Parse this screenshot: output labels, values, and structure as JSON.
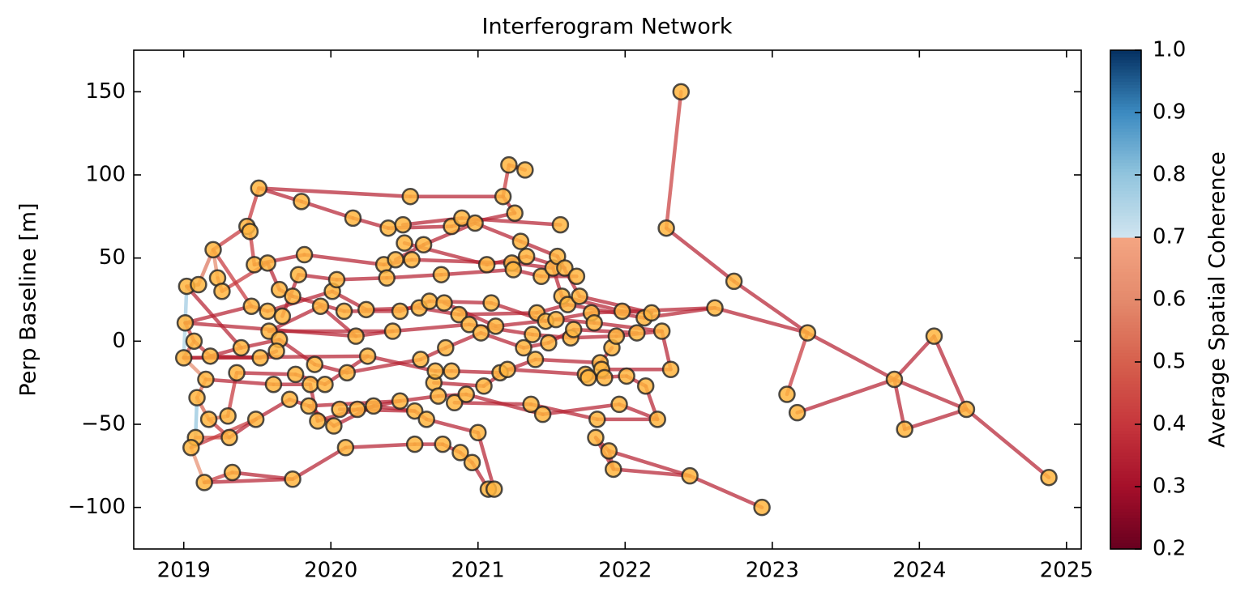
{
  "chart_data": {
    "type": "network",
    "title": "Interferogram Network",
    "y_label": "Perp Baseline [m]",
    "colorbar_label": "Average Spatial Coherence",
    "xlim": [
      2018.66,
      2025.1
    ],
    "xticks": [
      2019,
      2020,
      2021,
      2022,
      2023,
      2024,
      2025
    ],
    "ylim": [
      -125,
      175
    ],
    "yticks": [
      {
        "value": -100,
        "label": "−100"
      },
      {
        "value": -50,
        "label": "−50"
      },
      0,
      50,
      100,
      150
    ],
    "clim": [
      0.2,
      1.0
    ],
    "cticks": [
      0.2,
      0.3,
      0.4,
      0.5,
      0.6,
      0.7,
      0.8,
      0.9,
      {
        "value": 1,
        "label": "1.0"
      }
    ],
    "colormap": [
      [
        0.2,
        "#67001f"
      ],
      [
        0.3,
        "#a50f2a"
      ],
      [
        0.4,
        "#c6363c"
      ],
      [
        0.5,
        "#d6604d"
      ],
      [
        0.6,
        "#e48a6c"
      ],
      [
        0.7,
        "#f4a582"
      ],
      [
        0.7,
        "#d1e5f0"
      ],
      [
        0.8,
        "#92c5de"
      ],
      [
        0.9,
        "#3c8bc1"
      ],
      [
        1.0,
        "#053061"
      ]
    ],
    "node_color": "#ffb540",
    "nodes": [
      [
        2019.02,
        33
      ],
      [
        2019.01,
        11
      ],
      [
        2019.0,
        -10
      ],
      [
        2019.07,
        0
      ],
      [
        2019.1,
        34
      ],
      [
        2019.2,
        55
      ],
      [
        2019.23,
        38
      ],
      [
        2019.26,
        30
      ],
      [
        2019.18,
        -9
      ],
      [
        2019.15,
        -23
      ],
      [
        2019.09,
        -34
      ],
      [
        2019.17,
        -47
      ],
      [
        2019.08,
        -58
      ],
      [
        2019.05,
        -64
      ],
      [
        2019.14,
        -85
      ],
      [
        2019.3,
        -45
      ],
      [
        2019.31,
        -58
      ],
      [
        2019.33,
        -79
      ],
      [
        2019.39,
        -4
      ],
      [
        2019.36,
        -19
      ],
      [
        2019.43,
        69
      ],
      [
        2019.45,
        66
      ],
      [
        2019.51,
        92
      ],
      [
        2019.46,
        21
      ],
      [
        2019.48,
        46
      ],
      [
        2019.57,
        47
      ],
      [
        2019.49,
        -47
      ],
      [
        2019.52,
        -10
      ],
      [
        2019.61,
        -26
      ],
      [
        2019.57,
        18
      ],
      [
        2019.58,
        6
      ],
      [
        2019.65,
        31
      ],
      [
        2019.67,
        15
      ],
      [
        2019.65,
        1
      ],
      [
        2019.63,
        -6
      ],
      [
        2019.72,
        -35
      ],
      [
        2019.74,
        -83
      ],
      [
        2019.78,
        40
      ],
      [
        2019.8,
        84
      ],
      [
        2019.82,
        52
      ],
      [
        2019.74,
        27
      ],
      [
        2019.76,
        -20
      ],
      [
        2019.86,
        -26
      ],
      [
        2019.89,
        -14
      ],
      [
        2019.85,
        -39
      ],
      [
        2019.93,
        21
      ],
      [
        2019.91,
        -48
      ],
      [
        2019.96,
        -26
      ],
      [
        2020.01,
        30
      ],
      [
        2020.04,
        37
      ],
      [
        2020.02,
        -51
      ],
      [
        2020.06,
        -41
      ],
      [
        2020.1,
        -64
      ],
      [
        2020.11,
        -19
      ],
      [
        2020.09,
        18
      ],
      [
        2020.15,
        74
      ],
      [
        2020.18,
        -41
      ],
      [
        2020.17,
        3
      ],
      [
        2020.24,
        19
      ],
      [
        2020.25,
        -9
      ],
      [
        2020.29,
        -39
      ],
      [
        2020.36,
        46
      ],
      [
        2020.38,
        38
      ],
      [
        2020.39,
        68
      ],
      [
        2020.42,
        6
      ],
      [
        2020.44,
        49
      ],
      [
        2020.47,
        18
      ],
      [
        2020.47,
        -36
      ],
      [
        2020.49,
        70
      ],
      [
        2020.5,
        59
      ],
      [
        2020.54,
        87
      ],
      [
        2020.55,
        49
      ],
      [
        2020.57,
        -62
      ],
      [
        2020.57,
        -42
      ],
      [
        2020.6,
        20
      ],
      [
        2020.61,
        -11
      ],
      [
        2020.63,
        58
      ],
      [
        2020.65,
        -47
      ],
      [
        2020.67,
        24
      ],
      [
        2020.7,
        -25
      ],
      [
        2020.71,
        -18
      ],
      [
        2020.73,
        -33
      ],
      [
        2020.75,
        40
      ],
      [
        2020.76,
        -62
      ],
      [
        2020.77,
        23
      ],
      [
        2020.78,
        -4
      ],
      [
        2020.82,
        69
      ],
      [
        2020.82,
        -18
      ],
      [
        2020.84,
        -37
      ],
      [
        2020.87,
        16
      ],
      [
        2020.88,
        -67
      ],
      [
        2020.89,
        74
      ],
      [
        2020.92,
        -32
      ],
      [
        2020.94,
        10
      ],
      [
        2020.96,
        -73
      ],
      [
        2020.98,
        71
      ],
      [
        2021.0,
        -55
      ],
      [
        2021.02,
        5
      ],
      [
        2021.04,
        -27
      ],
      [
        2021.06,
        46
      ],
      [
        2021.07,
        -89
      ],
      [
        2021.11,
        -89
      ],
      [
        2021.09,
        23
      ],
      [
        2021.12,
        9
      ],
      [
        2021.15,
        -19
      ],
      [
        2021.17,
        87
      ],
      [
        2021.2,
        -17
      ],
      [
        2021.21,
        106
      ],
      [
        2021.23,
        47
      ],
      [
        2021.24,
        43
      ],
      [
        2021.25,
        77
      ],
      [
        2021.29,
        60
      ],
      [
        2021.31,
        -4
      ],
      [
        2021.32,
        103
      ],
      [
        2021.33,
        51
      ],
      [
        2021.36,
        -38
      ],
      [
        2021.37,
        4
      ],
      [
        2021.39,
        -11
      ],
      [
        2021.4,
        17
      ],
      [
        2021.43,
        39
      ],
      [
        2021.44,
        -44
      ],
      [
        2021.46,
        12
      ],
      [
        2021.48,
        -1
      ],
      [
        2021.51,
        44
      ],
      [
        2021.53,
        13
      ],
      [
        2021.54,
        51
      ],
      [
        2021.56,
        70
      ],
      [
        2021.57,
        27
      ],
      [
        2021.59,
        44
      ],
      [
        2021.61,
        22
      ],
      [
        2021.63,
        2
      ],
      [
        2021.65,
        7
      ],
      [
        2021.67,
        39
      ],
      [
        2021.69,
        27
      ],
      [
        2021.73,
        -20
      ],
      [
        2021.75,
        -22
      ],
      [
        2021.77,
        17
      ],
      [
        2021.79,
        11
      ],
      [
        2021.8,
        -58
      ],
      [
        2021.81,
        -47
      ],
      [
        2021.83,
        -13
      ],
      [
        2021.84,
        -17
      ],
      [
        2021.86,
        -22
      ],
      [
        2021.89,
        -66
      ],
      [
        2021.91,
        -4
      ],
      [
        2021.92,
        -77
      ],
      [
        2021.94,
        3
      ],
      [
        2021.96,
        -38
      ],
      [
        2021.98,
        18
      ],
      [
        2022.01,
        -21
      ],
      [
        2022.08,
        5
      ],
      [
        2022.13,
        14
      ],
      [
        2022.14,
        -27
      ],
      [
        2022.18,
        17
      ],
      [
        2022.22,
        -47
      ],
      [
        2022.25,
        6
      ],
      [
        2022.28,
        68
      ],
      [
        2022.31,
        -17
      ],
      [
        2022.38,
        150
      ],
      [
        2022.44,
        -81
      ],
      [
        2022.61,
        20
      ],
      [
        2022.74,
        36
      ],
      [
        2022.93,
        -100
      ],
      [
        2023.1,
        -32
      ],
      [
        2023.17,
        -43
      ],
      [
        2023.24,
        5
      ],
      [
        2023.83,
        -23
      ],
      [
        2023.9,
        -53
      ],
      [
        2024.1,
        3
      ],
      [
        2024.32,
        -41
      ],
      [
        2024.88,
        -82
      ]
    ],
    "edges": [
      [
        0,
        1,
        0.78
      ],
      [
        1,
        2,
        0.76
      ],
      [
        2,
        3,
        0.45
      ],
      [
        0,
        4,
        0.5
      ],
      [
        1,
        3,
        0.4
      ],
      [
        3,
        8,
        0.4
      ],
      [
        10,
        12,
        0.8
      ],
      [
        12,
        13,
        0.74
      ],
      [
        10,
        11,
        0.5
      ],
      [
        13,
        14,
        0.62
      ],
      [
        9,
        10,
        0.5
      ],
      [
        2,
        9,
        0.6
      ],
      [
        11,
        15,
        0.5
      ],
      [
        11,
        16,
        0.4
      ],
      [
        14,
        17,
        0.4
      ],
      [
        14,
        36,
        0.35
      ],
      [
        17,
        36,
        0.35
      ],
      [
        15,
        19,
        0.4
      ],
      [
        8,
        18,
        0.35
      ],
      [
        4,
        5,
        0.55
      ],
      [
        5,
        6,
        0.6
      ],
      [
        6,
        7,
        0.45
      ],
      [
        5,
        20,
        0.4
      ],
      [
        5,
        23,
        0.4
      ],
      [
        20,
        22,
        0.4
      ],
      [
        22,
        38,
        0.35
      ],
      [
        38,
        55,
        0.35
      ],
      [
        21,
        24,
        0.4
      ],
      [
        7,
        25,
        0.4
      ],
      [
        0,
        18,
        0.35
      ],
      [
        1,
        23,
        0.35
      ],
      [
        2,
        27,
        0.35
      ],
      [
        8,
        27,
        0.35
      ],
      [
        9,
        28,
        0.35
      ],
      [
        12,
        16,
        0.45
      ],
      [
        13,
        26,
        0.4
      ],
      [
        16,
        26,
        0.35
      ],
      [
        26,
        35,
        0.35
      ],
      [
        19,
        41,
        0.35
      ],
      [
        23,
        29,
        0.35
      ],
      [
        24,
        39,
        0.35
      ],
      [
        25,
        31,
        0.35
      ],
      [
        18,
        33,
        0.35
      ],
      [
        27,
        34,
        0.35
      ],
      [
        28,
        42,
        0.35
      ],
      [
        30,
        45,
        0.35
      ],
      [
        31,
        40,
        0.35
      ],
      [
        32,
        37,
        0.35
      ],
      [
        29,
        48,
        0.35
      ],
      [
        33,
        43,
        0.35
      ],
      [
        35,
        44,
        0.35
      ],
      [
        36,
        52,
        0.35
      ],
      [
        37,
        49,
        0.35
      ],
      [
        39,
        61,
        0.35
      ],
      [
        40,
        54,
        0.35
      ],
      [
        41,
        47,
        0.35
      ],
      [
        42,
        46,
        0.35
      ],
      [
        43,
        53,
        0.35
      ],
      [
        44,
        50,
        0.35
      ],
      [
        45,
        57,
        0.35
      ],
      [
        46,
        56,
        0.35
      ],
      [
        47,
        59,
        0.35
      ],
      [
        48,
        58,
        0.35
      ],
      [
        49,
        62,
        0.35
      ],
      [
        50,
        60,
        0.35
      ],
      [
        52,
        72,
        0.35
      ],
      [
        53,
        75,
        0.35
      ],
      [
        54,
        66,
        0.35
      ],
      [
        55,
        63,
        0.35
      ],
      [
        56,
        67,
        0.35
      ],
      [
        57,
        64,
        0.35
      ],
      [
        58,
        74,
        0.35
      ],
      [
        59,
        80,
        0.35
      ],
      [
        60,
        73,
        0.35
      ],
      [
        61,
        71,
        0.35
      ],
      [
        62,
        82,
        0.35
      ],
      [
        63,
        86,
        0.35
      ],
      [
        64,
        93,
        0.35
      ],
      [
        65,
        76,
        0.35
      ],
      [
        66,
        78,
        0.35
      ],
      [
        67,
        81,
        0.35
      ],
      [
        68,
        91,
        0.35
      ],
      [
        69,
        99,
        0.35
      ],
      [
        70,
        105,
        0.35
      ],
      [
        71,
        108,
        0.35
      ],
      [
        72,
        83,
        0.35
      ],
      [
        73,
        77,
        0.35
      ],
      [
        74,
        89,
        0.35
      ],
      [
        75,
        85,
        0.35
      ],
      [
        76,
        95,
        0.35
      ],
      [
        77,
        96,
        0.35
      ],
      [
        78,
        102,
        0.35
      ],
      [
        79,
        98,
        0.35
      ],
      [
        80,
        87,
        0.35
      ],
      [
        81,
        92,
        0.35
      ],
      [
        82,
        109,
        0.35
      ],
      [
        83,
        90,
        0.35
      ],
      [
        84,
        103,
        0.35
      ],
      [
        85,
        97,
        0.35
      ],
      [
        86,
        110,
        0.35
      ],
      [
        87,
        104,
        0.35
      ],
      [
        88,
        115,
        0.35
      ],
      [
        89,
        118,
        0.35
      ],
      [
        90,
        94,
        0.35
      ],
      [
        91,
        126,
        0.35
      ],
      [
        92,
        120,
        0.35
      ],
      [
        93,
        116,
        0.35
      ],
      [
        94,
        100,
        0.35
      ],
      [
        96,
        101,
        0.35
      ],
      [
        95,
        111,
        0.35
      ],
      [
        97,
        112,
        0.35
      ],
      [
        98,
        106,
        0.35
      ],
      [
        99,
        114,
        0.35
      ],
      [
        102,
        121,
        0.35
      ],
      [
        103,
        124,
        0.35
      ],
      [
        104,
        117,
        0.35
      ],
      [
        105,
        107,
        0.4
      ],
      [
        107,
        113,
        0.4
      ],
      [
        105,
        110,
        0.35
      ],
      [
        106,
        134,
        0.35
      ],
      [
        108,
        123,
        0.35
      ],
      [
        109,
        119,
        0.35
      ],
      [
        111,
        125,
        0.35
      ],
      [
        112,
        122,
        0.35
      ],
      [
        114,
        128,
        0.35
      ],
      [
        115,
        139,
        0.35
      ],
      [
        116,
        130,
        0.35
      ],
      [
        117,
        140,
        0.35
      ],
      [
        118,
        129,
        0.35
      ],
      [
        119,
        132,
        0.35
      ],
      [
        120,
        147,
        0.35
      ],
      [
        121,
        136,
        0.35
      ],
      [
        122,
        131,
        0.35
      ],
      [
        123,
        127,
        0.35
      ],
      [
        124,
        137,
        0.35
      ],
      [
        125,
        133,
        0.35
      ],
      [
        127,
        148,
        0.35
      ],
      [
        129,
        151,
        0.35
      ],
      [
        130,
        146,
        0.35
      ],
      [
        131,
        150,
        0.35
      ],
      [
        133,
        153,
        0.35
      ],
      [
        134,
        142,
        0.35
      ],
      [
        135,
        149,
        0.35
      ],
      [
        136,
        160,
        0.35
      ],
      [
        137,
        155,
        0.35
      ],
      [
        138,
        143,
        0.35
      ],
      [
        139,
        154,
        0.35
      ],
      [
        140,
        144,
        0.35
      ],
      [
        141,
        157,
        0.35
      ],
      [
        143,
        159,
        0.35
      ],
      [
        145,
        159,
        0.35
      ],
      [
        146,
        155,
        0.35
      ],
      [
        147,
        154,
        0.35
      ],
      [
        148,
        153,
        0.35
      ],
      [
        149,
        152,
        0.35
      ],
      [
        152,
        154,
        0.35
      ],
      [
        151,
        160,
        0.35
      ],
      [
        155,
        157,
        0.35
      ],
      [
        156,
        158,
        0.42
      ],
      [
        156,
        161,
        0.35
      ],
      [
        159,
        162,
        0.35
      ],
      [
        160,
        165,
        0.35
      ],
      [
        161,
        165,
        0.35
      ],
      [
        163,
        165,
        0.4
      ],
      [
        164,
        166,
        0.35
      ],
      [
        165,
        166,
        0.35
      ],
      [
        166,
        167,
        0.35
      ],
      [
        166,
        168,
        0.35
      ],
      [
        166,
        169,
        0.35
      ],
      [
        167,
        169,
        0.35
      ],
      [
        168,
        169,
        0.35
      ],
      [
        169,
        170,
        0.35
      ],
      [
        138,
        145,
        0.35
      ],
      [
        143,
        145,
        0.35
      ],
      [
        100,
        101,
        0.35
      ],
      [
        22,
        70,
        0.35
      ],
      [
        2,
        59,
        0.35
      ],
      [
        1,
        57,
        0.35
      ],
      [
        30,
        64,
        0.35
      ],
      [
        51,
        73,
        0.35
      ],
      [
        44,
        67,
        0.35
      ]
    ]
  }
}
